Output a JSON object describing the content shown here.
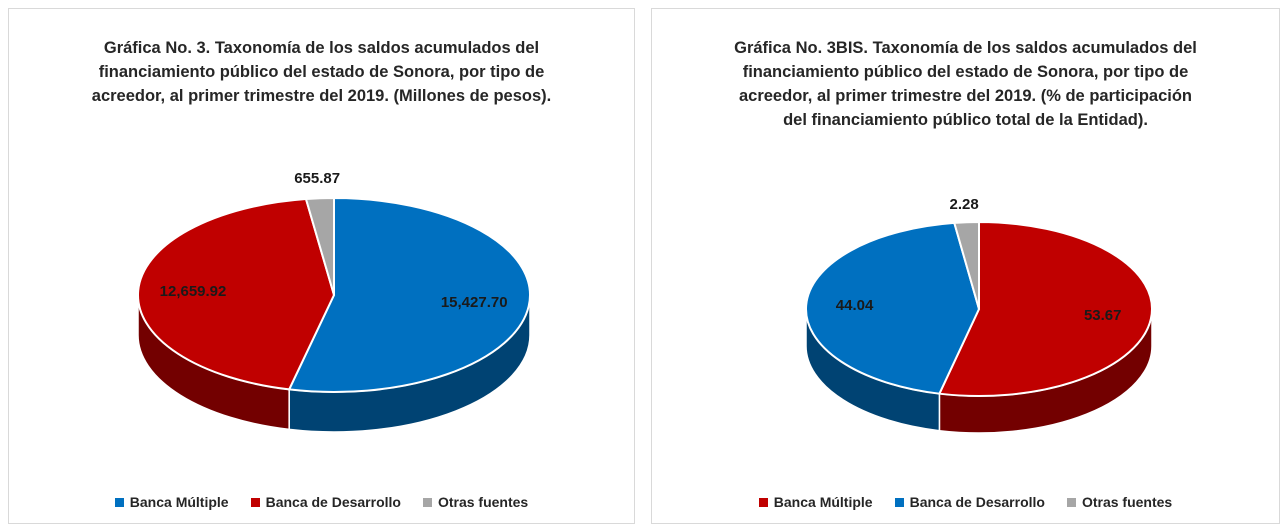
{
  "chart_data": [
    {
      "type": "pie",
      "title": "Gráfica No. 3. Taxonomía de los saldos acumulados del financiamiento público del estado de Sonora, por tipo de acreedor, al primer trimestre del 2019. (Millones de pesos).",
      "categories": [
        "Banca Múltiple",
        "Banca de Desarrollo",
        "Otras fuentes"
      ],
      "values": [
        15427.7,
        12659.92,
        655.87
      ],
      "value_labels": [
        "15,427.70",
        "12,659.92",
        "655.87"
      ],
      "colors": [
        "#0070c0",
        "#c00000",
        "#a6a6a6"
      ]
    },
    {
      "type": "pie",
      "title": "Gráfica No. 3BIS. Taxonomía de los saldos acumulados del financiamiento público del estado de Sonora, por tipo de acreedor, al primer trimestre del 2019. (% de participación del financiamiento público total de la Entidad).",
      "categories": [
        "Banca Múltiple",
        "Banca de Desarrollo",
        "Otras fuentes"
      ],
      "values": [
        53.67,
        44.04,
        2.28
      ],
      "colors": [
        "#c00000",
        "#0070c0",
        "#a6a6a6"
      ]
    }
  ]
}
